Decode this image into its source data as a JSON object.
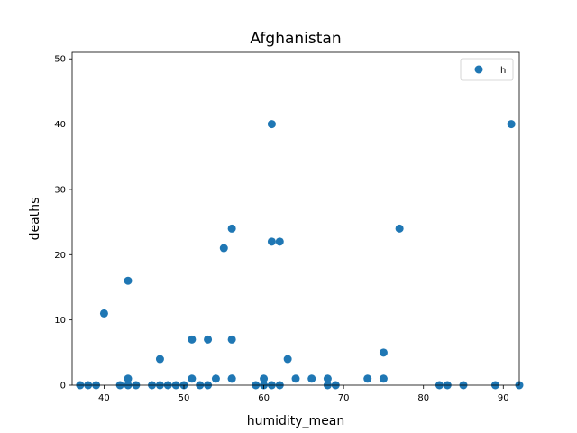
{
  "chart_data": {
    "type": "scatter",
    "title": "Afghanistan",
    "xlabel": "humidity_mean",
    "ylabel": "deaths",
    "xlim": [
      36,
      92
    ],
    "ylim": [
      0,
      51
    ],
    "xticks": [
      40,
      50,
      60,
      70,
      80,
      90
    ],
    "yticks": [
      0,
      10,
      20,
      30,
      40,
      50
    ],
    "grid": false,
    "legend_position": "top-right",
    "series": [
      {
        "name": "h",
        "color": "#1f77b4",
        "points": [
          {
            "x": 37,
            "y": 0
          },
          {
            "x": 38,
            "y": 0
          },
          {
            "x": 39,
            "y": 0
          },
          {
            "x": 40,
            "y": 11
          },
          {
            "x": 42,
            "y": 0
          },
          {
            "x": 43,
            "y": 0
          },
          {
            "x": 43,
            "y": 1
          },
          {
            "x": 43,
            "y": 16
          },
          {
            "x": 44,
            "y": 0
          },
          {
            "x": 46,
            "y": 0
          },
          {
            "x": 47,
            "y": 0
          },
          {
            "x": 47,
            "y": 4
          },
          {
            "x": 48,
            "y": 0
          },
          {
            "x": 49,
            "y": 0
          },
          {
            "x": 50,
            "y": 0
          },
          {
            "x": 51,
            "y": 1
          },
          {
            "x": 51,
            "y": 7
          },
          {
            "x": 52,
            "y": 0
          },
          {
            "x": 53,
            "y": 0
          },
          {
            "x": 53,
            "y": 7
          },
          {
            "x": 54,
            "y": 1
          },
          {
            "x": 55,
            "y": 21
          },
          {
            "x": 56,
            "y": 1
          },
          {
            "x": 56,
            "y": 1
          },
          {
            "x": 56,
            "y": 7
          },
          {
            "x": 56,
            "y": 24
          },
          {
            "x": 59,
            "y": 0
          },
          {
            "x": 60,
            "y": 1
          },
          {
            "x": 60,
            "y": 0
          },
          {
            "x": 61,
            "y": 0
          },
          {
            "x": 61,
            "y": 22
          },
          {
            "x": 61,
            "y": 40
          },
          {
            "x": 62,
            "y": 0
          },
          {
            "x": 62,
            "y": 22
          },
          {
            "x": 63,
            "y": 4
          },
          {
            "x": 64,
            "y": 1
          },
          {
            "x": 66,
            "y": 1
          },
          {
            "x": 68,
            "y": 0
          },
          {
            "x": 68,
            "y": 1
          },
          {
            "x": 69,
            "y": 0
          },
          {
            "x": 73,
            "y": 1
          },
          {
            "x": 75,
            "y": 1
          },
          {
            "x": 75,
            "y": 5
          },
          {
            "x": 77,
            "y": 24
          },
          {
            "x": 82,
            "y": 0
          },
          {
            "x": 83,
            "y": 0
          },
          {
            "x": 85,
            "y": 0
          },
          {
            "x": 89,
            "y": 0
          },
          {
            "x": 91,
            "y": 40
          },
          {
            "x": 92,
            "y": 0
          }
        ]
      }
    ]
  }
}
